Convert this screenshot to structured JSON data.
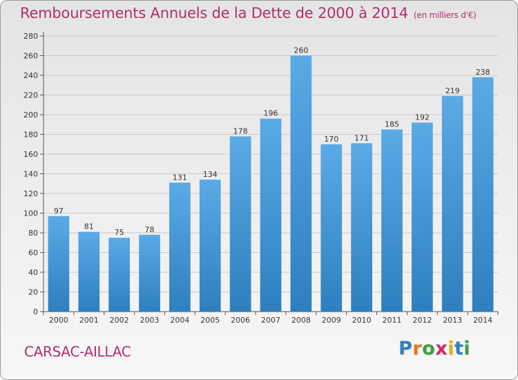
{
  "header": {
    "title": "Remboursements Annuels de la Dette de 2000 à 2014",
    "subtitle": "(en milliers d'€)"
  },
  "footer": {
    "place": "CARSAC-AILLAC",
    "logo_text": "Proxiti",
    "logo_letters": [
      "P",
      "r",
      "o",
      "x",
      "i",
      "t",
      "i"
    ],
    "logo_colors": [
      "#2f7fc4",
      "#e07820",
      "#3aa040",
      "#d02a6a",
      "#e0b020",
      "#2f7fc4",
      "#3aa040"
    ]
  },
  "chart_data": {
    "type": "bar",
    "title": "Remboursements Annuels de la Dette de 2000 à 2014",
    "subtitle": "(en milliers d'€)",
    "categories": [
      "2000",
      "2001",
      "2002",
      "2003",
      "2004",
      "2005",
      "2006",
      "2007",
      "2008",
      "2009",
      "2010",
      "2011",
      "2012",
      "2013",
      "2014"
    ],
    "values": [
      97,
      81,
      75,
      78,
      131,
      134,
      178,
      196,
      260,
      170,
      171,
      185,
      192,
      219,
      238
    ],
    "ylim": [
      0,
      280
    ],
    "yticks": [
      0,
      20,
      40,
      60,
      80,
      100,
      120,
      140,
      160,
      180,
      200,
      220,
      240,
      260,
      280
    ],
    "grid": true,
    "bar_color_top": "#5aaae6",
    "bar_color_bottom": "#2e7fbf"
  }
}
